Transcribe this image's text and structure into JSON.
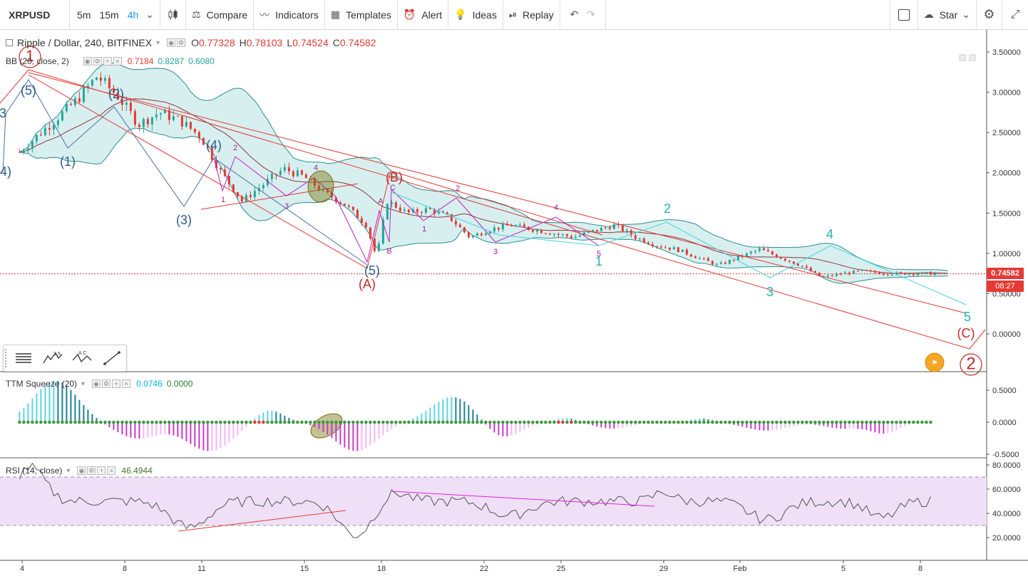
{
  "toolbar": {
    "symbol": "XRPUSD",
    "timeframes": [
      "5m",
      "15m",
      "4h"
    ],
    "active_timeframe": "4h",
    "compare": "Compare",
    "indicators": "Indicators",
    "templates": "Templates",
    "alert": "Alert",
    "ideas": "Ideas",
    "replay": "Replay",
    "star": "Star"
  },
  "main_legend": {
    "title": "Ripple / Dollar, 240, BITFINEX",
    "o_label": "O",
    "o_value": "0.77328",
    "h_label": "H",
    "h_value": "0.78103",
    "l_label": "L",
    "l_value": "0.74524",
    "c_label": "C",
    "c_value": "0.74582"
  },
  "bb_legend": {
    "label": "BB (20, close, 2)",
    "v1": "0.7184",
    "v2": "0.8287",
    "v3": "0.6080"
  },
  "ttm_legend": {
    "label": "TTM Squeeze (20)",
    "v1": "0.0746",
    "v2": "0.0000"
  },
  "rsi_legend": {
    "label": "RSI (14, close)",
    "v1": "46.4944"
  },
  "price_tag": "0.74582",
  "time_tag": "08:27",
  "colors": {
    "up": "#26a69a",
    "down": "#e53935",
    "bb": "#2a8f8f",
    "bb_fill": "#d8efef",
    "rsi": "#7b1fa2",
    "rsi_bg": "#efe0f7"
  },
  "chart_data": [
    {
      "type": "candlestick",
      "symbol": "Ripple / Dollar",
      "interval": "240",
      "exchange": "BITFINEX",
      "y_ticks": [
        "3.50000",
        "3.00000",
        "2.50000",
        "2.00000",
        "1.50000",
        "1.00000",
        "0.50000",
        "0.00000"
      ],
      "ylim": [
        -0.35,
        3.6
      ],
      "x_ticks": [
        "4",
        "8",
        "11",
        "15",
        "18",
        "22",
        "25",
        "29",
        "Feb",
        "5",
        "8"
      ],
      "approx_close_path": [
        [
          0,
          2.2
        ],
        [
          3,
          2.9
        ],
        [
          4,
          3.2
        ],
        [
          5,
          2.95
        ],
        [
          6,
          2.6
        ],
        [
          7,
          2.75
        ],
        [
          8,
          2.65
        ],
        [
          9,
          2.45
        ],
        [
          10,
          2.0
        ],
        [
          11,
          1.65
        ],
        [
          12,
          1.85
        ],
        [
          13,
          2.05
        ],
        [
          14,
          1.95
        ],
        [
          15,
          1.75
        ],
        [
          16,
          1.6
        ],
        [
          17,
          1.35
        ],
        [
          17.5,
          0.95
        ],
        [
          18,
          1.65
        ],
        [
          19,
          1.5
        ],
        [
          20,
          1.55
        ],
        [
          21,
          1.45
        ],
        [
          22,
          1.2
        ],
        [
          23,
          1.3
        ],
        [
          24,
          1.35
        ],
        [
          25,
          1.3
        ],
        [
          26,
          1.25
        ],
        [
          27,
          1.2
        ],
        [
          28,
          1.28
        ],
        [
          29,
          1.35
        ],
        [
          30,
          1.2
        ],
        [
          31,
          1.1
        ],
        [
          32,
          1.05
        ],
        [
          33,
          0.95
        ],
        [
          34,
          0.85
        ],
        [
          35,
          0.95
        ],
        [
          36,
          1.05
        ],
        [
          37,
          0.95
        ],
        [
          38,
          0.85
        ],
        [
          39,
          0.7
        ],
        [
          40,
          0.75
        ],
        [
          41,
          0.78
        ],
        [
          42,
          0.75
        ]
      ],
      "annotations": [
        "1",
        "(5)",
        "(2)",
        "(1)",
        "(3)",
        "(4)",
        "2",
        "1",
        "3",
        "4",
        "(5)",
        "(A)",
        "(B)",
        "A",
        "B",
        "C",
        "2",
        "1",
        "3",
        "4",
        "5",
        "1",
        "2",
        "3",
        "4",
        "5",
        "(C)",
        "2",
        "3"
      ]
    },
    {
      "type": "histogram",
      "name": "TTM Squeeze (20)",
      "y_ticks": [
        "0.5000",
        "0.0000",
        "-0.5000"
      ],
      "ylim": [
        -0.55,
        0.6
      ]
    },
    {
      "type": "line",
      "name": "RSI (14, close)",
      "y_ticks": [
        "80.0000",
        "60.0000",
        "40.0000",
        "20.0000"
      ],
      "ylim": [
        10,
        82
      ],
      "bands": [
        30,
        70
      ],
      "last_value": 46.4944
    }
  ]
}
